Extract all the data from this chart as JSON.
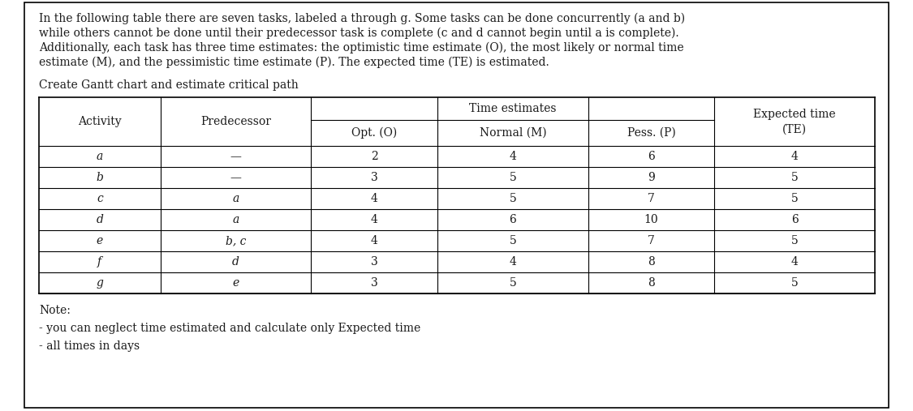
{
  "intro_text_lines": [
    "In the following table there are seven tasks, labeled a through g. Some tasks can be done concurrently (a and b)",
    "while others cannot be done until their predecessor task is complete (c and d cannot begin until a is complete).",
    "Additionally, each task has three time estimates: the optimistic time estimate (O), the most likely or normal time",
    "estimate (M), and the pessimistic time estimate (P). The expected time (TE) is estimated."
  ],
  "subtitle": "Create Gantt chart and estimate critical path",
  "rows": [
    {
      "activity": "a",
      "predecessor": "—",
      "opt": "2",
      "normal": "4",
      "pess": "6",
      "te": "4"
    },
    {
      "activity": "b",
      "predecessor": "—",
      "opt": "3",
      "normal": "5",
      "pess": "9",
      "te": "5"
    },
    {
      "activity": "c",
      "predecessor": "a",
      "opt": "4",
      "normal": "5",
      "pess": "7",
      "te": "5"
    },
    {
      "activity": "d",
      "predecessor": "a",
      "opt": "4",
      "normal": "6",
      "pess": "10",
      "te": "6"
    },
    {
      "activity": "e",
      "predecessor": "b, c",
      "opt": "4",
      "normal": "5",
      "pess": "7",
      "te": "5"
    },
    {
      "activity": "f",
      "predecessor": "d",
      "opt": "3",
      "normal": "4",
      "pess": "8",
      "te": "4"
    },
    {
      "activity": "g",
      "predecessor": "e",
      "opt": "3",
      "normal": "5",
      "pess": "8",
      "te": "5"
    }
  ],
  "note_lines": [
    "Note:",
    "- you can neglect time estimated and calculate only Expected time",
    "- all times in days"
  ],
  "bg_color": "#ffffff",
  "text_color": "#1a1a1a",
  "font_size_intro": 10.0,
  "font_size_table": 10.0,
  "font_size_note": 10.0
}
